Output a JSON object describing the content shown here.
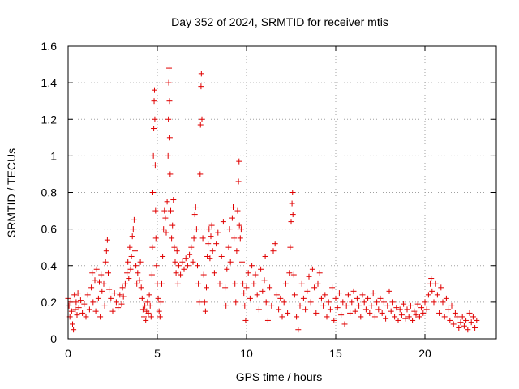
{
  "chart_data": {
    "type": "scatter",
    "title": "Day 352 of 2024, SRMTID for receiver mtis",
    "xlabel": "GPS time / hours",
    "ylabel": "SRMTID / TECUs",
    "xlim": [
      0,
      24
    ],
    "ylim": [
      0,
      1.6
    ],
    "xticks": [
      0,
      5,
      10,
      15,
      20
    ],
    "xtick_labels": [
      "0",
      "5",
      "10",
      "15",
      "20"
    ],
    "yticks": [
      0,
      0.2,
      0.4,
      0.6,
      0.8,
      1.0,
      1.2,
      1.4,
      1.6
    ],
    "ytick_labels": [
      "0",
      "0.2",
      "0.4",
      "0.6",
      "0.8",
      "1",
      "1.2",
      "1.4",
      "1.6"
    ],
    "grid": true,
    "marker": "plus",
    "marker_color": "#e00000",
    "series": [
      {
        "name": "mtis",
        "points": [
          [
            0.0,
            0.22
          ],
          [
            0.05,
            0.18
          ],
          [
            0.1,
            0.12
          ],
          [
            0.15,
            0.2
          ],
          [
            0.2,
            0.15
          ],
          [
            0.25,
            0.08
          ],
          [
            0.3,
            0.05
          ],
          [
            0.35,
            0.24
          ],
          [
            0.4,
            0.16
          ],
          [
            0.45,
            0.2
          ],
          [
            0.5,
            0.13
          ],
          [
            0.55,
            0.25
          ],
          [
            0.6,
            0.17
          ],
          [
            0.7,
            0.21
          ],
          [
            0.8,
            0.14
          ],
          [
            0.9,
            0.19
          ],
          [
            1.0,
            0.12
          ],
          [
            1.1,
            0.24
          ],
          [
            1.2,
            0.16
          ],
          [
            1.3,
            0.28
          ],
          [
            1.35,
            0.36
          ],
          [
            1.4,
            0.2
          ],
          [
            1.5,
            0.32
          ],
          [
            1.55,
            0.15
          ],
          [
            1.6,
            0.38
          ],
          [
            1.7,
            0.22
          ],
          [
            1.75,
            0.31
          ],
          [
            1.8,
            0.12
          ],
          [
            1.85,
            0.35
          ],
          [
            1.9,
            0.26
          ],
          [
            2.0,
            0.3
          ],
          [
            2.05,
            0.18
          ],
          [
            2.1,
            0.42
          ],
          [
            2.15,
            0.48
          ],
          [
            2.2,
            0.54
          ],
          [
            2.25,
            0.36
          ],
          [
            2.3,
            0.27
          ],
          [
            2.4,
            0.22
          ],
          [
            2.5,
            0.15
          ],
          [
            2.6,
            0.25
          ],
          [
            2.7,
            0.2
          ],
          [
            2.8,
            0.17
          ],
          [
            2.9,
            0.24
          ],
          [
            3.0,
            0.19
          ],
          [
            3.05,
            0.28
          ],
          [
            3.1,
            0.23
          ],
          [
            3.2,
            0.3
          ],
          [
            3.3,
            0.36
          ],
          [
            3.35,
            0.42
          ],
          [
            3.4,
            0.33
          ],
          [
            3.45,
            0.5
          ],
          [
            3.5,
            0.38
          ],
          [
            3.55,
            0.45
          ],
          [
            3.6,
            0.56
          ],
          [
            3.65,
            0.6
          ],
          [
            3.7,
            0.65
          ],
          [
            3.75,
            0.48
          ],
          [
            3.8,
            0.4
          ],
          [
            3.85,
            0.3
          ],
          [
            3.9,
            0.36
          ],
          [
            4.0,
            0.32
          ],
          [
            4.05,
            0.42
          ],
          [
            4.1,
            0.28
          ],
          [
            4.15,
            0.22
          ],
          [
            4.2,
            0.16
          ],
          [
            4.25,
            0.12
          ],
          [
            4.3,
            0.18
          ],
          [
            4.35,
            0.1
          ],
          [
            4.4,
            0.15
          ],
          [
            4.45,
            0.2
          ],
          [
            4.5,
            0.14
          ],
          [
            4.55,
            0.24
          ],
          [
            4.6,
            0.18
          ],
          [
            4.65,
            0.12
          ],
          [
            4.7,
            0.35
          ],
          [
            4.72,
            0.5
          ],
          [
            4.75,
            0.8
          ],
          [
            4.78,
            1.0
          ],
          [
            4.8,
            1.15
          ],
          [
            4.82,
            1.3
          ],
          [
            4.84,
            1.36
          ],
          [
            4.86,
            1.2
          ],
          [
            4.88,
            0.95
          ],
          [
            4.9,
            0.7
          ],
          [
            4.92,
            0.55
          ],
          [
            4.95,
            0.4
          ],
          [
            5.0,
            0.3
          ],
          [
            5.05,
            0.22
          ],
          [
            5.1,
            0.15
          ],
          [
            5.15,
            0.12
          ],
          [
            5.2,
            0.2
          ],
          [
            5.25,
            0.3
          ],
          [
            5.3,
            0.45
          ],
          [
            5.35,
            0.6
          ],
          [
            5.4,
            0.7
          ],
          [
            5.45,
            0.66
          ],
          [
            5.5,
            0.58
          ],
          [
            5.55,
            0.75
          ],
          [
            5.6,
            1.0
          ],
          [
            5.62,
            1.2
          ],
          [
            5.64,
            1.4
          ],
          [
            5.66,
            1.48
          ],
          [
            5.68,
            1.3
          ],
          [
            5.7,
            1.1
          ],
          [
            5.72,
            0.9
          ],
          [
            5.75,
            0.7
          ],
          [
            5.8,
            0.55
          ],
          [
            5.85,
            0.62
          ],
          [
            5.9,
            0.76
          ],
          [
            5.95,
            0.5
          ],
          [
            6.0,
            0.42
          ],
          [
            6.05,
            0.36
          ],
          [
            6.1,
            0.48
          ],
          [
            6.15,
            0.3
          ],
          [
            6.2,
            0.4
          ],
          [
            6.3,
            0.35
          ],
          [
            6.4,
            0.42
          ],
          [
            6.5,
            0.38
          ],
          [
            6.6,
            0.44
          ],
          [
            6.7,
            0.4
          ],
          [
            6.8,
            0.46
          ],
          [
            6.9,
            0.5
          ],
          [
            7.0,
            0.42
          ],
          [
            7.05,
            0.55
          ],
          [
            7.1,
            0.68
          ],
          [
            7.15,
            0.72
          ],
          [
            7.2,
            0.6
          ],
          [
            7.25,
            0.4
          ],
          [
            7.3,
            0.3
          ],
          [
            7.35,
            0.2
          ],
          [
            7.4,
            0.9
          ],
          [
            7.42,
            1.17
          ],
          [
            7.45,
            1.38
          ],
          [
            7.47,
            1.45
          ],
          [
            7.5,
            1.2
          ],
          [
            7.55,
            0.55
          ],
          [
            7.6,
            0.35
          ],
          [
            7.65,
            0.2
          ],
          [
            7.7,
            0.15
          ],
          [
            7.75,
            0.28
          ],
          [
            7.8,
            0.45
          ],
          [
            7.85,
            0.52
          ],
          [
            7.9,
            0.6
          ],
          [
            7.95,
            0.44
          ],
          [
            8.0,
            0.56
          ],
          [
            8.05,
            0.62
          ],
          [
            8.1,
            0.48
          ],
          [
            8.2,
            0.36
          ],
          [
            8.3,
            0.52
          ],
          [
            8.4,
            0.58
          ],
          [
            8.5,
            0.3
          ],
          [
            8.6,
            0.45
          ],
          [
            8.7,
            0.64
          ],
          [
            8.8,
            0.28
          ],
          [
            8.85,
            0.18
          ],
          [
            8.9,
            0.38
          ],
          [
            9.0,
            0.5
          ],
          [
            9.05,
            0.6
          ],
          [
            9.1,
            0.42
          ],
          [
            9.2,
            0.66
          ],
          [
            9.25,
            0.72
          ],
          [
            9.3,
            0.55
          ],
          [
            9.35,
            0.3
          ],
          [
            9.4,
            0.2
          ],
          [
            9.45,
            0.48
          ],
          [
            9.5,
            0.7
          ],
          [
            9.55,
            0.86
          ],
          [
            9.58,
            0.97
          ],
          [
            9.6,
            0.62
          ],
          [
            9.65,
            0.55
          ],
          [
            9.7,
            0.6
          ],
          [
            9.75,
            0.42
          ],
          [
            9.8,
            0.3
          ],
          [
            9.85,
            0.25
          ],
          [
            9.9,
            0.18
          ],
          [
            9.95,
            0.1
          ],
          [
            10.0,
            0.28
          ],
          [
            10.1,
            0.36
          ],
          [
            10.2,
            0.22
          ],
          [
            10.3,
            0.4
          ],
          [
            10.4,
            0.3
          ],
          [
            10.5,
            0.35
          ],
          [
            10.6,
            0.24
          ],
          [
            10.7,
            0.16
          ],
          [
            10.8,
            0.38
          ],
          [
            10.9,
            0.26
          ],
          [
            11.0,
            0.32
          ],
          [
            11.05,
            0.45
          ],
          [
            11.1,
            0.2
          ],
          [
            11.2,
            0.1
          ],
          [
            11.3,
            0.28
          ],
          [
            11.4,
            0.18
          ],
          [
            11.5,
            0.48
          ],
          [
            11.6,
            0.52
          ],
          [
            11.7,
            0.24
          ],
          [
            11.8,
            0.16
          ],
          [
            11.9,
            0.22
          ],
          [
            12.0,
            0.12
          ],
          [
            12.1,
            0.2
          ],
          [
            12.2,
            0.3
          ],
          [
            12.3,
            0.14
          ],
          [
            12.4,
            0.36
          ],
          [
            12.45,
            0.5
          ],
          [
            12.5,
            0.64
          ],
          [
            12.55,
            0.74
          ],
          [
            12.58,
            0.8
          ],
          [
            12.6,
            0.68
          ],
          [
            12.65,
            0.35
          ],
          [
            12.7,
            0.24
          ],
          [
            12.8,
            0.12
          ],
          [
            12.9,
            0.05
          ],
          [
            13.0,
            0.18
          ],
          [
            13.1,
            0.3
          ],
          [
            13.2,
            0.22
          ],
          [
            13.3,
            0.16
          ],
          [
            13.4,
            0.26
          ],
          [
            13.5,
            0.34
          ],
          [
            13.6,
            0.2
          ],
          [
            13.7,
            0.38
          ],
          [
            13.8,
            0.28
          ],
          [
            13.9,
            0.14
          ],
          [
            14.0,
            0.3
          ],
          [
            14.1,
            0.36
          ],
          [
            14.2,
            0.22
          ],
          [
            14.3,
            0.18
          ],
          [
            14.4,
            0.24
          ],
          [
            14.5,
            0.12
          ],
          [
            14.6,
            0.2
          ],
          [
            14.7,
            0.16
          ],
          [
            14.8,
            0.28
          ],
          [
            14.9,
            0.1
          ],
          [
            15.0,
            0.22
          ],
          [
            15.1,
            0.17
          ],
          [
            15.2,
            0.25
          ],
          [
            15.3,
            0.13
          ],
          [
            15.4,
            0.2
          ],
          [
            15.5,
            0.08
          ],
          [
            15.6,
            0.18
          ],
          [
            15.7,
            0.24
          ],
          [
            15.8,
            0.14
          ],
          [
            15.9,
            0.2
          ],
          [
            16.0,
            0.26
          ],
          [
            16.1,
            0.15
          ],
          [
            16.2,
            0.22
          ],
          [
            16.3,
            0.18
          ],
          [
            16.4,
            0.12
          ],
          [
            16.5,
            0.24
          ],
          [
            16.6,
            0.2
          ],
          [
            16.7,
            0.16
          ],
          [
            16.8,
            0.22
          ],
          [
            16.9,
            0.14
          ],
          [
            17.0,
            0.18
          ],
          [
            17.1,
            0.25
          ],
          [
            17.2,
            0.12
          ],
          [
            17.3,
            0.2
          ],
          [
            17.4,
            0.16
          ],
          [
            17.5,
            0.22
          ],
          [
            17.6,
            0.14
          ],
          [
            17.7,
            0.2
          ],
          [
            17.8,
            0.11
          ],
          [
            17.9,
            0.18
          ],
          [
            18.0,
            0.26
          ],
          [
            18.1,
            0.15
          ],
          [
            18.2,
            0.2
          ],
          [
            18.3,
            0.12
          ],
          [
            18.4,
            0.17
          ],
          [
            18.5,
            0.1
          ],
          [
            18.6,
            0.16
          ],
          [
            18.7,
            0.13
          ],
          [
            18.8,
            0.19
          ],
          [
            18.9,
            0.11
          ],
          [
            19.0,
            0.16
          ],
          [
            19.1,
            0.12
          ],
          [
            19.2,
            0.18
          ],
          [
            19.3,
            0.1
          ],
          [
            19.4,
            0.15
          ],
          [
            19.5,
            0.13
          ],
          [
            19.6,
            0.19
          ],
          [
            19.7,
            0.12
          ],
          [
            19.8,
            0.17
          ],
          [
            19.9,
            0.14
          ],
          [
            20.0,
            0.2
          ],
          [
            20.1,
            0.16
          ],
          [
            20.2,
            0.24
          ],
          [
            20.3,
            0.3
          ],
          [
            20.35,
            0.33
          ],
          [
            20.4,
            0.26
          ],
          [
            20.5,
            0.2
          ],
          [
            20.6,
            0.3
          ],
          [
            20.7,
            0.24
          ],
          [
            20.8,
            0.14
          ],
          [
            20.9,
            0.28
          ],
          [
            21.0,
            0.2
          ],
          [
            21.1,
            0.12
          ],
          [
            21.2,
            0.22
          ],
          [
            21.3,
            0.16
          ],
          [
            21.4,
            0.1
          ],
          [
            21.5,
            0.18
          ],
          [
            21.6,
            0.08
          ],
          [
            21.7,
            0.14
          ],
          [
            21.8,
            0.12
          ],
          [
            21.9,
            0.06
          ],
          [
            22.0,
            0.09
          ],
          [
            22.1,
            0.12
          ],
          [
            22.2,
            0.07
          ],
          [
            22.3,
            0.1
          ],
          [
            22.4,
            0.05
          ],
          [
            22.5,
            0.14
          ],
          [
            22.6,
            0.09
          ],
          [
            22.7,
            0.12
          ],
          [
            22.8,
            0.06
          ],
          [
            22.9,
            0.1
          ]
        ]
      }
    ]
  }
}
